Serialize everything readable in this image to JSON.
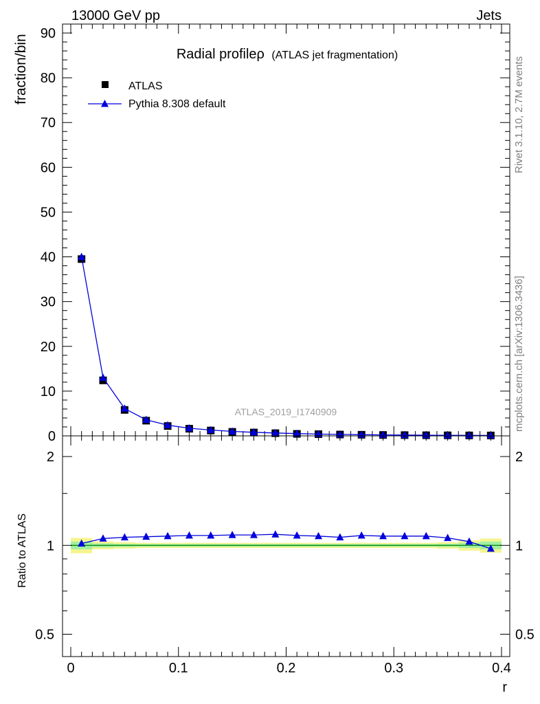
{
  "header": {
    "left": "13000 GeV pp",
    "right": "Jets"
  },
  "side_labels": {
    "rivet": "Rivet 3.1.10,  2.7M events",
    "mcplots": "mcplots.cern.ch [arXiv:1306.3436]"
  },
  "chart_data": [
    {
      "type": "line",
      "panel": "main",
      "title": "Radial profileρ",
      "subtitle": "(ATLAS jet fragmentation)",
      "ylabel": "fraction/bin",
      "watermark": "ATLAS_2019_I1740909",
      "xlim": [
        0,
        0.4
      ],
      "ylim": [
        0,
        92
      ],
      "yticks": [
        0,
        10,
        20,
        30,
        40,
        50,
        60,
        70,
        80,
        90
      ],
      "ytick_labels": [
        "0",
        "10",
        "20",
        "30",
        "40",
        "50",
        "60",
        "70",
        "80",
        "90"
      ],
      "legend_position": "top-left",
      "grid": false,
      "x": [
        0.01,
        0.03,
        0.05,
        0.07,
        0.09,
        0.11,
        0.13,
        0.15,
        0.17,
        0.19,
        0.21,
        0.23,
        0.25,
        0.27,
        0.29,
        0.31,
        0.33,
        0.35,
        0.37,
        0.39
      ],
      "series": [
        {
          "name": "ATLAS",
          "color": "#000000",
          "marker": "square",
          "values": [
            39.5,
            12.4,
            5.8,
            3.4,
            2.2,
            1.6,
            1.2,
            0.9,
            0.75,
            0.6,
            0.45,
            0.38,
            0.3,
            0.25,
            0.2,
            0.17,
            0.14,
            0.12,
            0.1,
            0.09
          ]
        },
        {
          "name": "Pythia 8.308 default",
          "color": "#0000dd",
          "marker": "triangle",
          "values": [
            40.0,
            13.0,
            6.1,
            3.6,
            2.4,
            1.7,
            1.3,
            1.0,
            0.8,
            0.65,
            0.5,
            0.4,
            0.32,
            0.27,
            0.22,
            0.18,
            0.15,
            0.13,
            0.11,
            0.09
          ]
        }
      ]
    },
    {
      "type": "line",
      "panel": "ratio",
      "ylabel": "Ratio to ATLAS",
      "xlabel": "r",
      "xlim": [
        0,
        0.4
      ],
      "ylim": [
        0.42,
        2.35
      ],
      "yscale": "log",
      "xticks": [
        0,
        0.1,
        0.2,
        0.3,
        0.4
      ],
      "xtick_labels": [
        "0",
        "0.1",
        "0.2",
        "0.3",
        "0.4"
      ],
      "yticks": [
        0.5,
        1,
        2
      ],
      "ytick_labels": [
        "0.5",
        "1",
        "2"
      ],
      "reference_line": 1,
      "band_bins": [
        0,
        0.02,
        0.04,
        0.06,
        0.08,
        0.1,
        0.12,
        0.14,
        0.16,
        0.18,
        0.2,
        0.22,
        0.24,
        0.26,
        0.28,
        0.3,
        0.32,
        0.34,
        0.36,
        0.38,
        0.4
      ],
      "band_total": [
        0.06,
        0.03,
        0.025,
        0.02,
        0.02,
        0.02,
        0.02,
        0.02,
        0.02,
        0.02,
        0.02,
        0.02,
        0.02,
        0.02,
        0.02,
        0.02,
        0.02,
        0.025,
        0.04,
        0.055
      ],
      "band_stat": [
        0.03,
        0.015,
        0.012,
        0.01,
        0.01,
        0.01,
        0.01,
        0.01,
        0.01,
        0.01,
        0.01,
        0.01,
        0.01,
        0.01,
        0.01,
        0.01,
        0.01,
        0.012,
        0.02,
        0.03
      ],
      "band_colors": {
        "total": "#f5f590",
        "stat": "#a0f0a0",
        "line": "#008000"
      },
      "x": [
        0.01,
        0.03,
        0.05,
        0.07,
        0.09,
        0.11,
        0.13,
        0.15,
        0.17,
        0.19,
        0.21,
        0.23,
        0.25,
        0.27,
        0.29,
        0.31,
        0.33,
        0.35,
        0.37,
        0.39
      ],
      "series": [
        {
          "name": "Pythia 8.308 default",
          "color": "#0000dd",
          "marker": "triangle",
          "values": [
            1.015,
            1.055,
            1.065,
            1.07,
            1.075,
            1.08,
            1.08,
            1.085,
            1.085,
            1.09,
            1.08,
            1.075,
            1.065,
            1.08,
            1.075,
            1.075,
            1.075,
            1.06,
            1.03,
            0.975
          ]
        }
      ]
    }
  ]
}
